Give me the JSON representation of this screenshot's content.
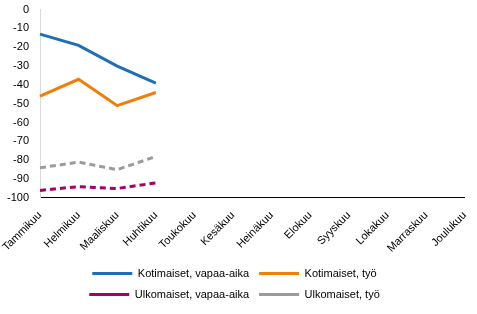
{
  "chart_data": {
    "type": "line",
    "categories": [
      "Tammikuu",
      "Helmikuu",
      "Maaliskuu",
      "Huhtikuu",
      "Toukokuu",
      "Kesäkuu",
      "Heinäkuu",
      "Elokuu",
      "Syyskuu",
      "Lokakuu",
      "Marraskuu",
      "Joulukuu"
    ],
    "series": [
      {
        "name": "Kotimaiset, vapaa-aika",
        "color": "#1f6fb4",
        "line_style": "solid",
        "values": [
          -13,
          -19,
          -30,
          -39,
          null,
          null,
          null,
          null,
          null,
          null,
          null,
          null
        ]
      },
      {
        "name": "Kotimaiset, työ",
        "color": "#f07f09",
        "line_style": "solid",
        "values": [
          -46,
          -37,
          -51,
          -44,
          null,
          null,
          null,
          null,
          null,
          null,
          null,
          null
        ]
      },
      {
        "name": "Ulkomaiset, vapaa-aika",
        "color": "#a3006b",
        "line_style": "dashed",
        "values": [
          -96,
          -94,
          -95,
          -92,
          null,
          null,
          null,
          null,
          null,
          null,
          null,
          null
        ]
      },
      {
        "name": "Ulkomaiset, työ",
        "color": "#9b9b9b",
        "line_style": "dashed",
        "values": [
          -84,
          -81,
          -85,
          -78,
          null,
          null,
          null,
          null,
          null,
          null,
          null,
          null
        ]
      }
    ],
    "ylim": [
      -100,
      0
    ],
    "yticks": [
      -100,
      -90,
      -80,
      -70,
      -60,
      -50,
      -40,
      -30,
      -20,
      -10,
      0
    ],
    "grid": false,
    "legend": "bottom"
  }
}
